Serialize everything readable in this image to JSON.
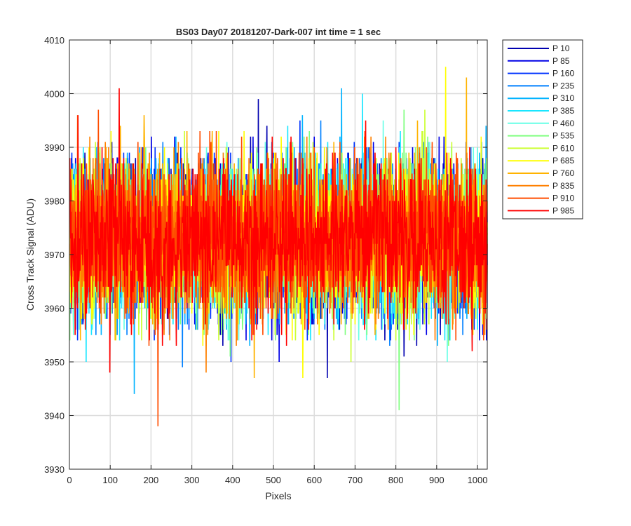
{
  "chart_data": {
    "type": "line",
    "title": "BS03 Day07 20181207-Dark-007 int time = 1 sec",
    "xlabel": "Pixels",
    "ylabel": "Cross Track Signal (ADU)",
    "xlim": [
      0,
      1024
    ],
    "ylim": [
      3930,
      4010
    ],
    "xticks": [
      "0",
      "100",
      "200",
      "300",
      "400",
      "500",
      "600",
      "700",
      "800",
      "900",
      "1000"
    ],
    "yticks": [
      "3930",
      "3940",
      "3950",
      "3960",
      "3970",
      "3980",
      "3990",
      "4000",
      "4010"
    ],
    "grid": true,
    "legend_position": "outside-top-right",
    "series": [
      {
        "name": "P 10",
        "color": "#0000B0",
        "mean": 3973,
        "min": 3947,
        "max": 3999
      },
      {
        "name": "P 85",
        "color": "#0000E6",
        "mean": 3973,
        "min": 3950,
        "max": 3996
      },
      {
        "name": "P 160",
        "color": "#0033FF",
        "mean": 3973,
        "min": 3950,
        "max": 3995
      },
      {
        "name": "P 235",
        "color": "#0080FF",
        "mean": 3973,
        "min": 3949,
        "max": 3995
      },
      {
        "name": "P 310",
        "color": "#00B3FF",
        "mean": 3973,
        "min": 3944,
        "max": 4001
      },
      {
        "name": "P 385",
        "color": "#19E6FF",
        "mean": 3973,
        "min": 3950,
        "max": 4000
      },
      {
        "name": "P 460",
        "color": "#66FFE6",
        "mean": 3973,
        "min": 3950,
        "max": 3995
      },
      {
        "name": "P 535",
        "color": "#80FF80",
        "mean": 3973,
        "min": 3941,
        "max": 3997
      },
      {
        "name": "P 610",
        "color": "#CCFF33",
        "mean": 3973,
        "min": 3950,
        "max": 3997
      },
      {
        "name": "P 685",
        "color": "#FFFF00",
        "mean": 3973,
        "min": 3947,
        "max": 4005
      },
      {
        "name": "P 760",
        "color": "#FFB300",
        "mean": 3973,
        "min": 3947,
        "max": 4003
      },
      {
        "name": "P 835",
        "color": "#FF8000",
        "mean": 3973,
        "min": 3948,
        "max": 3996
      },
      {
        "name": "P 910",
        "color": "#FF4D00",
        "mean": 3973,
        "min": 3938,
        "max": 3997
      },
      {
        "name": "P 985",
        "color": "#FF0000",
        "mean": 3973,
        "min": 3948,
        "max": 4001
      }
    ]
  }
}
